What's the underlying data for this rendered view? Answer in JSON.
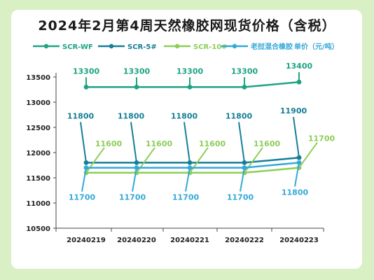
{
  "chart_data": {
    "type": "line",
    "title": "2024年2月第4周天然橡胶网现货价格（含税）",
    "unit_label": "单价（元/吨）",
    "x": [
      "20240219",
      "20240220",
      "20240221",
      "20240222",
      "20240223"
    ],
    "ylim": [
      10500,
      13500
    ],
    "yticks": [
      10500,
      11000,
      11500,
      12000,
      12500,
      13000,
      13500
    ],
    "series": [
      {
        "name": "SCR-WF",
        "values": [
          13300,
          13300,
          13300,
          13300,
          13400
        ],
        "color": "#1ea383",
        "labels": "top"
      },
      {
        "name": "SCR-5#",
        "values": [
          11800,
          11800,
          11800,
          11800,
          11900
        ],
        "color": "#167f96",
        "labels": "top"
      },
      {
        "name": "SCR-10#",
        "values": [
          11600,
          11600,
          11600,
          11600,
          11700
        ],
        "color": "#8cce57",
        "labels": "right"
      },
      {
        "name": "老挝混合橡胶",
        "values": [
          11700,
          11700,
          11700,
          11700,
          11800
        ],
        "color": "#34a8d9",
        "labels": "bottom"
      }
    ]
  }
}
